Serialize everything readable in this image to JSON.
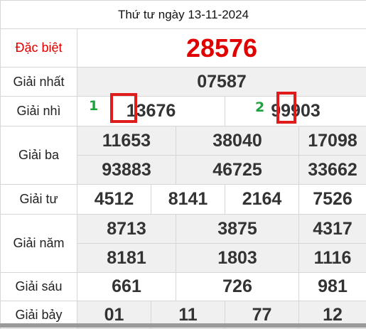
{
  "date_label": "Thứ tư ngày 13-11-2024",
  "prizes": {
    "special": {
      "label": "Đặc biệt",
      "numbers": [
        "28576"
      ]
    },
    "first": {
      "label": "Giải nhất",
      "numbers": [
        "07587"
      ]
    },
    "second": {
      "label": "Giải nhì",
      "numbers": [
        "13676",
        "99903"
      ]
    },
    "third": {
      "label": "Giải ba",
      "numbers": [
        "11653",
        "38040",
        "17098",
        "93883",
        "46725",
        "33662"
      ]
    },
    "fourth": {
      "label": "Giải tư",
      "numbers": [
        "4512",
        "8141",
        "2164",
        "7526"
      ]
    },
    "fifth": {
      "label": "Giải năm",
      "numbers": [
        "8713",
        "3875",
        "4317",
        "8181",
        "1803",
        "1116"
      ]
    },
    "sixth": {
      "label": "Giải sáu",
      "numbers": [
        "661",
        "726",
        "981"
      ]
    },
    "seventh": {
      "label": "Giải bảy",
      "numbers": [
        "01",
        "11",
        "77",
        "12"
      ]
    }
  },
  "annotations": [
    {
      "number": "1",
      "color": "#1aa33a",
      "box_color": "#e01b1b"
    },
    {
      "number": "2",
      "color": "#1aa33a",
      "box_color": "#e01b1b"
    }
  ]
}
